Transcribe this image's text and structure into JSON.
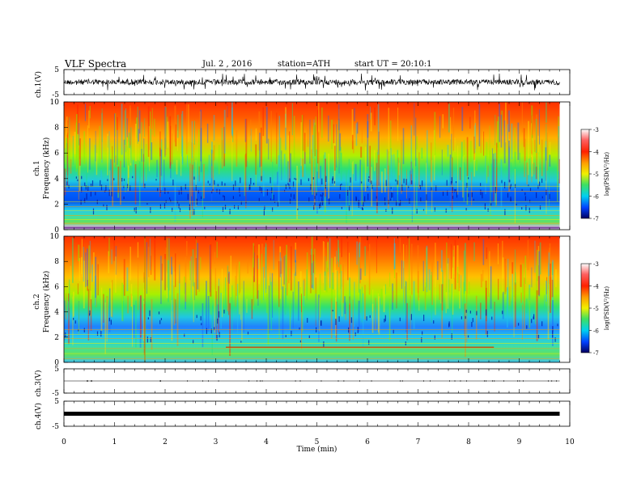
{
  "header": {
    "title": "VLF  Spectra",
    "date": "Jul.  2  ,  2016",
    "station": "station=ATH",
    "start": "start  UT  =    20:10:1"
  },
  "chart_data": [
    {
      "type": "line",
      "id": "ch1_waveform",
      "ylabel": "ch.1(V)",
      "ylim": [
        -5,
        5
      ],
      "yticks": [
        "5",
        "-5"
      ],
      "xlim": [
        0,
        10
      ],
      "color": "#000000"
    },
    {
      "type": "heatmap",
      "id": "ch1_spectrogram",
      "ylabel_top": "ch.1",
      "ylabel": "Frequency  (kHz)",
      "ylim": [
        0,
        10
      ],
      "yticks": [
        "0",
        "2",
        "4",
        "6",
        "8",
        "10"
      ],
      "xlim": [
        0,
        9.8
      ],
      "colorbar": {
        "label": "log(PSD(V²/Hz)",
        "range": [
          -7,
          -3
        ],
        "ticks": [
          "-3",
          "-4",
          "-5",
          "-6",
          "-7"
        ]
      }
    },
    {
      "type": "heatmap",
      "id": "ch2_spectrogram",
      "ylabel_top": "ch.2",
      "ylabel": "Frequency  (kHz)",
      "ylim": [
        0,
        10
      ],
      "yticks": [
        "0",
        "2",
        "4",
        "6",
        "8",
        "10"
      ],
      "xlim": [
        0,
        9.8
      ],
      "colorbar": {
        "label": "log(PSD(V²/Hz)",
        "range": [
          -7,
          -3
        ],
        "ticks": [
          "-3",
          "-4",
          "-5",
          "-6",
          "-7"
        ]
      }
    },
    {
      "type": "line",
      "id": "ch3_waveform",
      "ylabel": "ch.3(V)",
      "ylim": [
        -5,
        5
      ],
      "yticks": [
        "5",
        "-5"
      ],
      "xlim": [
        0,
        10
      ],
      "values_constant": 0
    },
    {
      "type": "line",
      "id": "ch4_waveform",
      "ylabel": "ch.4(V)",
      "ylim": [
        -5,
        5
      ],
      "yticks": [
        "5",
        "-5"
      ],
      "xlim": [
        0,
        10
      ],
      "values_constant": 0
    }
  ],
  "xaxis": {
    "label": "Time  (min)",
    "range": [
      0,
      10
    ],
    "ticks": [
      "0",
      "1",
      "2",
      "3",
      "4",
      "5",
      "6",
      "7",
      "8",
      "9",
      "10"
    ]
  }
}
